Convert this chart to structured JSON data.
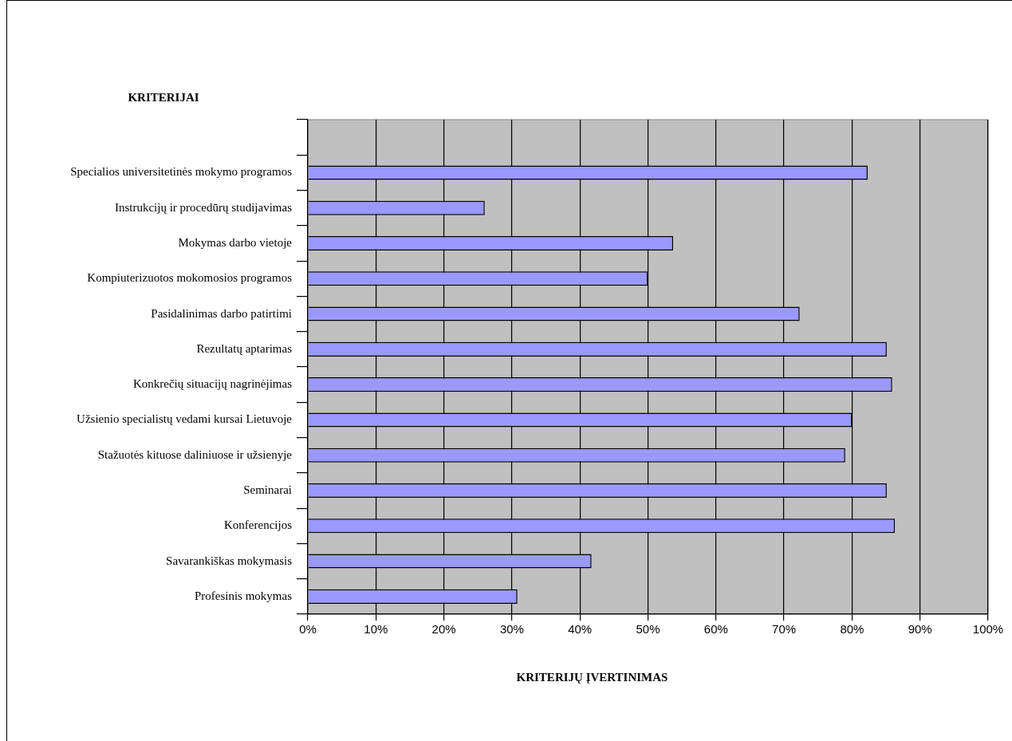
{
  "chart_data": {
    "type": "bar",
    "orientation": "horizontal",
    "xlabel": "KRITERIJŲ ĮVERTINIMAS",
    "ylabel": "KRITERIJAI",
    "categories": [
      null,
      "Specialios universitetinės mokymo programos",
      "Instrukcijų ir procedūrų studijavimas",
      "Mokymas darbo vietoje",
      "Kompiuterizuotos mokomosios programos",
      "Pasidalinimas darbo patirtimi",
      "Rezultatų aptarimas",
      "Konkrečių situacijų nagrinėjimas",
      "Užsienio specialistų vedami kursai Lietuvoje",
      "Stažuotės kituose daliniuose ir užsienyje",
      "Seminarai",
      "Konferencijos",
      "Savarankiškas mokymasis",
      "Profesinis mokymas"
    ],
    "values": [
      null,
      82.3,
      26,
      53.7,
      50,
      72.3,
      85.1,
      85.9,
      80,
      79,
      85.1,
      86.3,
      41.7,
      30.8
    ],
    "color": "#9999ff",
    "xlim": [
      0,
      100
    ],
    "xticks": [
      {
        "value": 0,
        "label": "0%"
      },
      {
        "value": 10,
        "label": "10%"
      },
      {
        "value": 20,
        "label": "20%"
      },
      {
        "value": 30,
        "label": "30%"
      },
      {
        "value": 40,
        "label": "40%"
      },
      {
        "value": 50,
        "label": "50%"
      },
      {
        "value": 60,
        "label": "60%"
      },
      {
        "value": 70,
        "label": "70%"
      },
      {
        "value": 80,
        "label": "80%"
      },
      {
        "value": 90,
        "label": "90%"
      },
      {
        "value": 100,
        "label": "100%"
      }
    ],
    "grid": "x",
    "legend": false
  }
}
